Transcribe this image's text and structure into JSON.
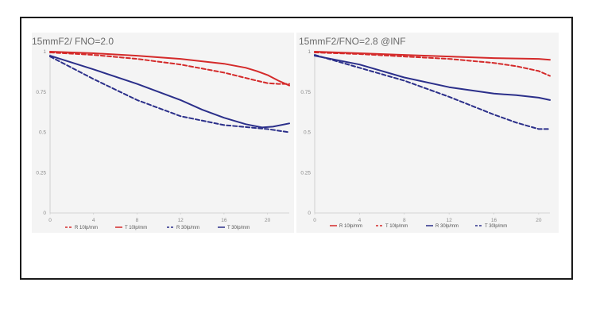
{
  "chart_data": [
    {
      "type": "line",
      "title": "15mmF2/ FNO=2.0",
      "xlim": [
        0,
        22
      ],
      "ylim": [
        0,
        1
      ],
      "xticks": [
        0,
        4,
        8,
        12,
        16,
        20
      ],
      "yticks": [
        0,
        0.25,
        0.5,
        0.75,
        1
      ],
      "legend_position": "bottom",
      "series": [
        {
          "name": "R 10lp/mm",
          "color": "#d42a2a",
          "dash": true,
          "x": [
            0,
            4,
            8,
            12,
            16,
            19,
            20,
            21,
            22
          ],
          "y": [
            0.995,
            0.98,
            0.955,
            0.92,
            0.87,
            0.82,
            0.805,
            0.8,
            0.8
          ]
        },
        {
          "name": "T 10lp/mm",
          "color": "#d42a2a",
          "dash": false,
          "x": [
            0,
            4,
            8,
            12,
            16,
            18,
            19,
            20,
            21,
            22
          ],
          "y": [
            1.0,
            0.99,
            0.975,
            0.955,
            0.925,
            0.9,
            0.88,
            0.855,
            0.82,
            0.79
          ]
        },
        {
          "name": "R 30lp/mm",
          "color": "#2b2f8a",
          "dash": true,
          "x": [
            0,
            2,
            4,
            8,
            12,
            16,
            20,
            22
          ],
          "y": [
            0.97,
            0.9,
            0.83,
            0.7,
            0.6,
            0.545,
            0.52,
            0.5
          ]
        },
        {
          "name": "T 30lp/mm",
          "color": "#2b2f8a",
          "dash": false,
          "x": [
            0,
            4,
            8,
            12,
            14,
            16,
            18,
            19.5,
            20.5,
            22
          ],
          "y": [
            0.975,
            0.89,
            0.8,
            0.7,
            0.64,
            0.59,
            0.55,
            0.53,
            0.535,
            0.555
          ]
        }
      ]
    },
    {
      "type": "line",
      "title": "15mmF2/FNO=2.8   @INF",
      "xlim": [
        0,
        21
      ],
      "ylim": [
        0,
        1
      ],
      "xticks": [
        0,
        4,
        8,
        12,
        16,
        20
      ],
      "yticks": [
        0,
        0.25,
        0.5,
        0.75,
        1
      ],
      "legend_position": "bottom",
      "series": [
        {
          "name": "R 10lp/mm",
          "color": "#d42a2a",
          "dash": false,
          "x": [
            0,
            4,
            8,
            12,
            16,
            20,
            21
          ],
          "y": [
            1.0,
            0.99,
            0.98,
            0.97,
            0.96,
            0.955,
            0.95
          ]
        },
        {
          "name": "T 10lp/mm",
          "color": "#d42a2a",
          "dash": true,
          "x": [
            0,
            4,
            8,
            12,
            16,
            18,
            20,
            21
          ],
          "y": [
            0.995,
            0.985,
            0.97,
            0.955,
            0.93,
            0.91,
            0.88,
            0.85
          ]
        },
        {
          "name": "R 30lp/mm",
          "color": "#2b2f8a",
          "dash": false,
          "x": [
            0,
            4,
            8,
            12,
            16,
            18,
            20,
            21
          ],
          "y": [
            0.975,
            0.92,
            0.84,
            0.78,
            0.74,
            0.73,
            0.715,
            0.7
          ]
        },
        {
          "name": "T 30lp/mm",
          "color": "#2b2f8a",
          "dash": true,
          "x": [
            0,
            4,
            8,
            12,
            16,
            18,
            20,
            21
          ],
          "y": [
            0.98,
            0.9,
            0.82,
            0.72,
            0.61,
            0.56,
            0.52,
            0.52
          ]
        }
      ]
    }
  ]
}
